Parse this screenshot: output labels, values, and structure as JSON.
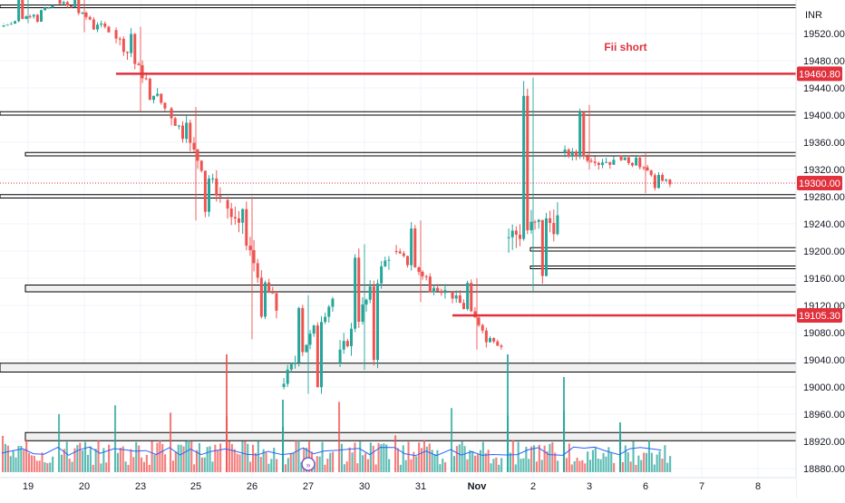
{
  "chart_data": {
    "type": "candlestick",
    "currency": "INR",
    "title": "",
    "y_axis": {
      "range": [
        18860,
        19560
      ],
      "ticks": [
        19520,
        19480,
        19440,
        19400,
        19360,
        19320,
        19280,
        19240,
        19200,
        19160,
        19120,
        19080,
        19040,
        19000,
        18960,
        18920,
        18880
      ],
      "tick_labels": [
        "19520.00",
        "19480.00",
        "19440.00",
        "19400.00",
        "19360.00",
        "19320.00",
        "19280.00",
        "19240.00",
        "19200.00",
        "19160.00",
        "19120.00",
        "19080.00",
        "19040.00",
        "19000.00",
        "18960.00",
        "18920.00",
        "18880.00"
      ]
    },
    "x_axis": {
      "labels": [
        "19",
        "20",
        "23",
        "25",
        "26",
        "27",
        "30",
        "31",
        "Nov",
        "2",
        "3",
        "6",
        "7",
        "8"
      ],
      "bold_labels": [
        "Nov"
      ]
    },
    "price_labels": [
      {
        "value": 19460.8,
        "text": "19460.80",
        "color": "#e0313d"
      },
      {
        "value": 19300.0,
        "text": "19300.00",
        "color": "#e0313d"
      },
      {
        "value": 19105.3,
        "text": "19105.30",
        "color": "#e0313d"
      }
    ],
    "annotation": {
      "text": "Fii short",
      "color": "#e0313d"
    },
    "colors": {
      "up": "#26a69a",
      "down": "#ef5350",
      "level": "#e0313d",
      "volume_ma": "#2962ff",
      "box": "#000000"
    },
    "levels": [
      {
        "price": 19460.8,
        "start_day": 23
      },
      {
        "price": 19105.3,
        "start_day": "Nov 1"
      }
    ],
    "zones": [
      {
        "low": 19558,
        "high": 19562,
        "from": "Oct 18",
        "to": "Nov 8"
      },
      {
        "low": 19400,
        "high": 19405,
        "from": "Oct 18",
        "to": "Nov 8"
      },
      {
        "low": 19340,
        "high": 19345,
        "from": "Oct 25",
        "to": "Nov 8"
      },
      {
        "low": 19278,
        "high": 19283,
        "from": "Oct 18",
        "to": "Nov 8"
      },
      {
        "low": 19200,
        "high": 19205,
        "from": "Nov 2",
        "to": "Nov 8"
      },
      {
        "low": 19174,
        "high": 19178,
        "from": "Nov 2",
        "to": "Nov 8"
      },
      {
        "low": 19140,
        "high": 19150,
        "from": "Oct 30",
        "to": "Nov 8"
      },
      {
        "low": 19022,
        "high": 19035,
        "from": "Oct 18",
        "to": "Nov 8"
      },
      {
        "low": 18921,
        "high": 18933,
        "from": "Oct 26",
        "to": "Nov 8"
      }
    ],
    "ohlc": {
      "days": [
        {
          "day": "19",
          "open": 19530,
          "high": 19575,
          "low": 19535,
          "close": 19560
        },
        {
          "day": "20",
          "open": 19570,
          "high": 19580,
          "low": 19522,
          "close": 19525
        },
        {
          "day": "23",
          "open": 19525,
          "high": 19530,
          "low": 19405,
          "close": 19410
        },
        {
          "day": "25",
          "open": 19410,
          "high": 19412,
          "low": 19245,
          "close": 19280
        },
        {
          "day": "26",
          "open": 19275,
          "high": 19280,
          "low": 19070,
          "close": 19115
        },
        {
          "day": "27",
          "open": 19000,
          "high": 19135,
          "low": 18990,
          "close": 19130
        },
        {
          "day": "30",
          "open": 19035,
          "high": 19210,
          "low": 19025,
          "close": 19195
        },
        {
          "day": "31",
          "open": 19200,
          "high": 19245,
          "low": 19125,
          "close": 19140
        },
        {
          "day": "Nov 1",
          "open": 19140,
          "high": 19160,
          "low": 19055,
          "close": 19060
        },
        {
          "day": "Nov 2",
          "open": 19220,
          "high": 19455,
          "low": 19140,
          "close": 19245
        },
        {
          "day": "Nov 3",
          "open": 19345,
          "high": 19415,
          "low": 19320,
          "close": 19330
        },
        {
          "day": "Nov 6",
          "open": 19340,
          "high": 19345,
          "low": 19285,
          "close": 19300
        }
      ]
    }
  }
}
